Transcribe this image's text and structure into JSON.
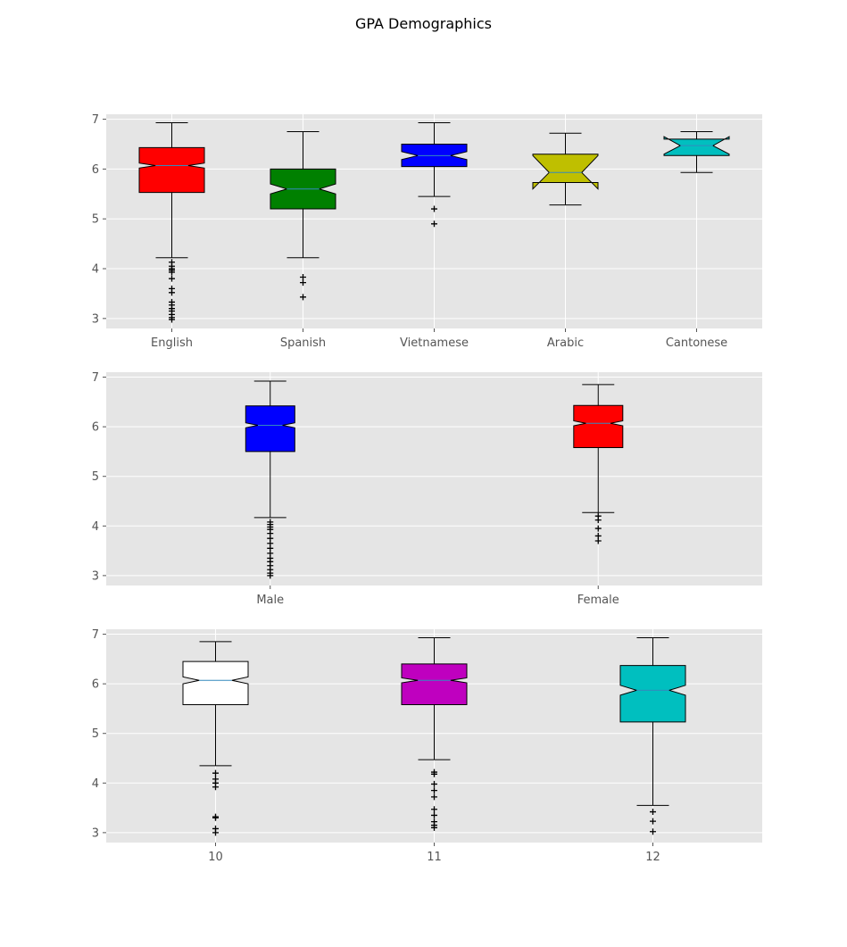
{
  "figure": {
    "title": "GPA Demographics"
  },
  "chart_data": [
    {
      "type": "boxplot",
      "notched": true,
      "title": "",
      "xlabel": "",
      "ylabel": "",
      "ylim": [
        2.8,
        7.1
      ],
      "yticks": [
        3,
        4,
        5,
        6,
        7
      ],
      "grid": true,
      "categories": [
        "English",
        "Spanish",
        "Vietnamese",
        "Arabic",
        "Cantonese"
      ],
      "colors": [
        "#ff0000",
        "#008000",
        "#0000ff",
        "#bfbf00",
        "#00bfbf"
      ],
      "boxes": [
        {
          "label": "English",
          "whislo": 4.22,
          "q1": 5.53,
          "med": 6.07,
          "q3": 6.43,
          "whishi": 6.93,
          "notch_lo": 6.02,
          "notch_hi": 6.12,
          "fliers": [
            4.13,
            4.05,
            4.0,
            3.97,
            3.93,
            3.8,
            3.6,
            3.52,
            3.33,
            3.27,
            3.2,
            3.15,
            3.08,
            3.02,
            2.98
          ]
        },
        {
          "label": "Spanish",
          "whislo": 4.22,
          "q1": 5.2,
          "med": 5.6,
          "q3": 6.0,
          "whishi": 6.75,
          "notch_lo": 5.5,
          "notch_hi": 5.7,
          "fliers": [
            3.83,
            3.72,
            3.43
          ]
        },
        {
          "label": "Vietnamese",
          "whislo": 5.45,
          "q1": 6.05,
          "med": 6.27,
          "q3": 6.5,
          "whishi": 6.93,
          "notch_lo": 6.19,
          "notch_hi": 6.35,
          "fliers": [
            5.2,
            4.9
          ]
        },
        {
          "label": "Arabic",
          "whislo": 5.28,
          "q1": 5.73,
          "med": 5.93,
          "q3": 6.3,
          "whishi": 6.72,
          "notch_lo": 5.6,
          "notch_hi": 6.27,
          "fliers": []
        },
        {
          "label": "Cantonese",
          "whislo": 5.93,
          "q1": 6.27,
          "med": 6.47,
          "q3": 6.6,
          "whishi": 6.75,
          "notch_lo": 6.3,
          "notch_hi": 6.65,
          "fliers": []
        }
      ]
    },
    {
      "type": "boxplot",
      "notched": true,
      "title": "",
      "xlabel": "",
      "ylabel": "",
      "ylim": [
        2.8,
        7.1
      ],
      "yticks": [
        3,
        4,
        5,
        6,
        7
      ],
      "grid": true,
      "categories": [
        "Male",
        "Female"
      ],
      "colors": [
        "#0000ff",
        "#ff0000"
      ],
      "boxes": [
        {
          "label": "Male",
          "whislo": 4.17,
          "q1": 5.5,
          "med": 6.03,
          "q3": 6.42,
          "whishi": 6.92,
          "notch_lo": 5.98,
          "notch_hi": 6.08,
          "fliers": [
            4.08,
            4.03,
            3.98,
            3.93,
            3.85,
            3.75,
            3.65,
            3.55,
            3.45,
            3.35,
            3.28,
            3.2,
            3.12,
            3.05,
            3.0
          ]
        },
        {
          "label": "Female",
          "whislo": 4.27,
          "q1": 5.58,
          "med": 6.07,
          "q3": 6.43,
          "whishi": 6.85,
          "notch_lo": 6.02,
          "notch_hi": 6.12,
          "fliers": [
            4.2,
            4.12,
            3.95,
            3.8,
            3.7
          ]
        }
      ]
    },
    {
      "type": "boxplot",
      "notched": true,
      "title": "",
      "xlabel": "",
      "ylabel": "",
      "ylim": [
        2.8,
        7.1
      ],
      "yticks": [
        3,
        4,
        5,
        6,
        7
      ],
      "grid": true,
      "categories": [
        "10",
        "11",
        "12"
      ],
      "colors": [
        "#ffffff",
        "#bf00bf",
        "#00bfbf"
      ],
      "boxes": [
        {
          "label": "10",
          "whislo": 4.35,
          "q1": 5.58,
          "med": 6.07,
          "q3": 6.45,
          "whishi": 6.85,
          "notch_lo": 6.0,
          "notch_hi": 6.14,
          "fliers": [
            4.2,
            4.08,
            4.0,
            3.92,
            3.32,
            3.3,
            3.08,
            3.0
          ]
        },
        {
          "label": "11",
          "whislo": 4.47,
          "q1": 5.58,
          "med": 6.07,
          "q3": 6.4,
          "whishi": 6.93,
          "notch_lo": 6.02,
          "notch_hi": 6.12,
          "fliers": [
            4.22,
            4.18,
            3.98,
            3.85,
            3.72,
            3.47,
            3.35,
            3.22,
            3.15,
            3.1
          ]
        },
        {
          "label": "12",
          "whislo": 3.55,
          "q1": 5.23,
          "med": 5.87,
          "q3": 6.37,
          "whishi": 6.93,
          "notch_lo": 5.77,
          "notch_hi": 5.97,
          "fliers": [
            3.42,
            3.23,
            3.02
          ]
        }
      ]
    }
  ]
}
